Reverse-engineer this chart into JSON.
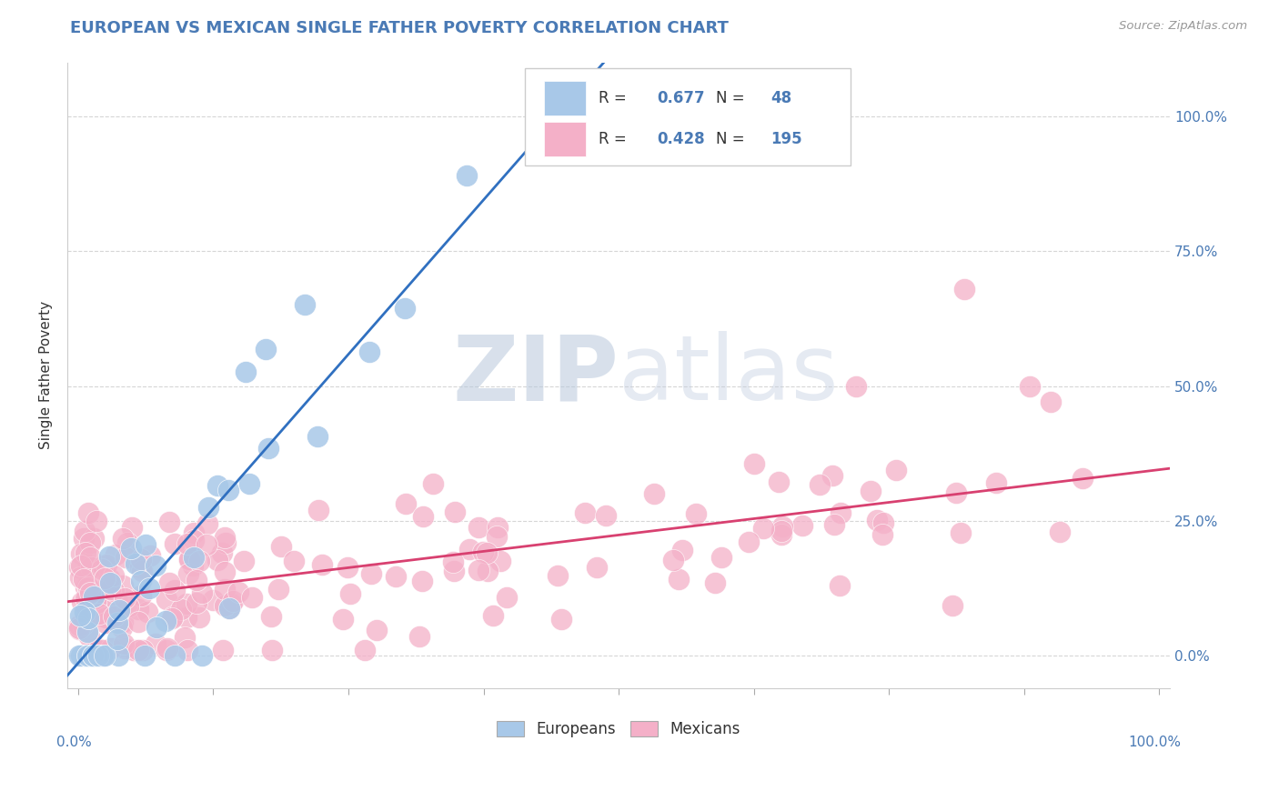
{
  "title": "EUROPEAN VS MEXICAN SINGLE FATHER POVERTY CORRELATION CHART",
  "source": "Source: ZipAtlas.com",
  "ylabel": "Single Father Poverty",
  "right_yticklabels": [
    "0.0%",
    "25.0%",
    "50.0%",
    "75.0%",
    "100.0%"
  ],
  "right_ytick_vals": [
    0.0,
    0.25,
    0.5,
    0.75,
    1.0
  ],
  "european_R": 0.677,
  "european_N": 48,
  "mexican_R": 0.428,
  "mexican_N": 195,
  "european_color": "#a8c8e8",
  "mexican_color": "#f4b0c8",
  "european_line_color": "#3070c0",
  "mexican_line_color": "#d84070",
  "watermark_zip": "ZIP",
  "watermark_atlas": "atlas",
  "background_color": "#ffffff",
  "title_color": "#4a7ab5",
  "source_color": "#999999",
  "axis_label_color": "#333333",
  "tick_color": "#4a7ab5",
  "grid_color": "#cccccc",
  "legend_text_color": "#333333",
  "stats_box_color": "#dddddd",
  "stats_num_color": "#4a7ab5"
}
